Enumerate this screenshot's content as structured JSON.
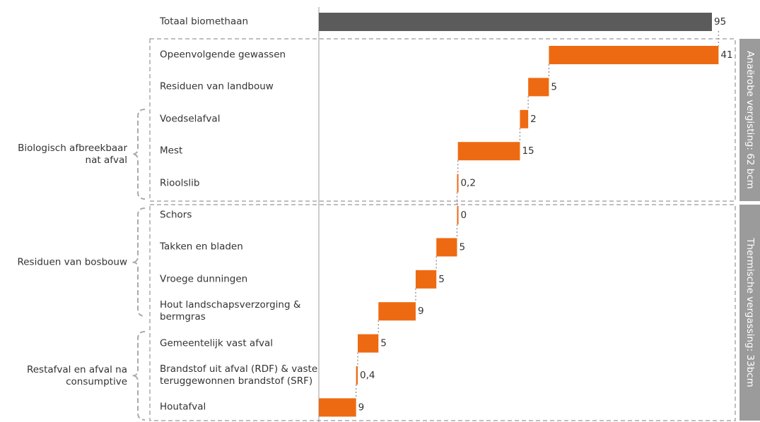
{
  "chart_data": {
    "type": "waterfall",
    "total": {
      "label": "Totaal biomethaan",
      "value": 95,
      "color": "#5b5b5b"
    },
    "categories": [
      "Opeenvolgende gewassen",
      "Residuen van landbouw",
      "Voedselafval",
      "Mest",
      "Rioolslib",
      "Schors",
      "Takken en bladen",
      "Vroege dunningen",
      "Hout landschapsverzorging & bermgras",
      "Gemeentelijk vast afval",
      "Brandstof uit afval (RDF) & vaste teruggewonnen brandstof (SRF)",
      "Houtafval"
    ],
    "values": [
      41,
      5,
      2,
      15,
      0.2,
      0,
      5,
      5,
      9,
      5,
      0.4,
      9
    ],
    "value_labels": [
      "41",
      "5",
      "2",
      "15",
      "0,2",
      "0",
      "5",
      "5",
      "9",
      "5",
      "0,4",
      "9"
    ],
    "color": "#ee6a12",
    "xlim": [
      0,
      95
    ],
    "groups": [
      {
        "label": "Biologisch afbreekbaar nat afval"
      },
      {
        "label": "Residuen van bosbouw"
      },
      {
        "label": "Restafval en afval na consumptive"
      }
    ],
    "sections": [
      {
        "label": "Anaërobe vergisting: 62 bcm"
      },
      {
        "label": "Thermische vergassing: 33bcm"
      }
    ]
  }
}
